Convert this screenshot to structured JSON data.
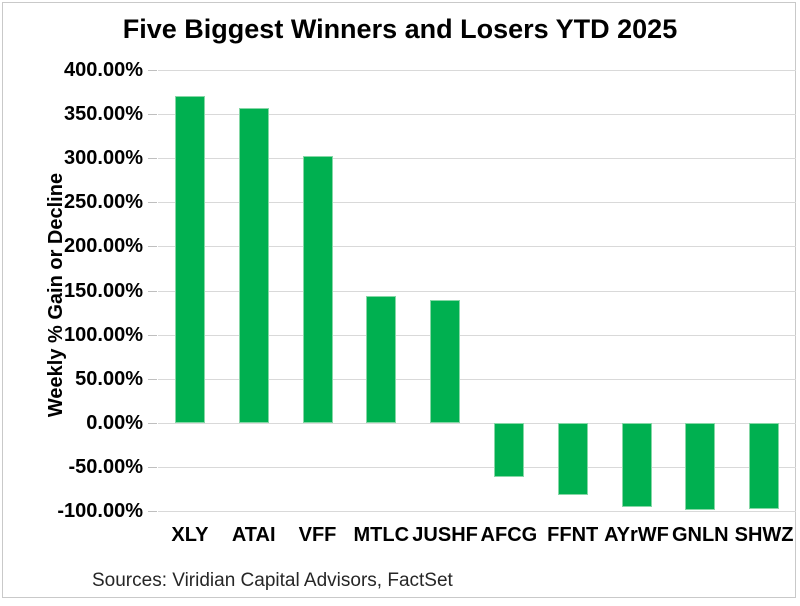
{
  "frame": {
    "border_color": "#c9c9c9",
    "background": "#ffffff"
  },
  "source_note": "Sources: Viridian Capital Advisors, FactSet",
  "chart_data": {
    "type": "bar",
    "title": "Five Biggest Winners and Losers YTD 2025",
    "xlabel": "",
    "ylabel": "Weekly % Gain or Decline",
    "categories": [
      "XLY",
      "ATAI",
      "VFF",
      "MTLC",
      "JUSHF",
      "AFCG",
      "FFNT",
      "AYrWF",
      "GNLN",
      "SHWZ"
    ],
    "values": [
      370,
      357,
      302,
      144,
      139,
      -61,
      -82,
      -95,
      -99,
      -98
    ],
    "ylim": [
      -100,
      400
    ],
    "y_tick_step": 50,
    "y_tick_labels": [
      "400.00%",
      "350.00%",
      "300.00%",
      "250.00%",
      "200.00%",
      "150.00%",
      "100.00%",
      "50.00%",
      "0.00%",
      "-50.00%",
      "-100.00%"
    ],
    "bar_color": "#00B050",
    "bar_edge_color": "#86d7a6",
    "gridline_color": "#d9d9d9",
    "grid": true,
    "legend_position": "none"
  }
}
